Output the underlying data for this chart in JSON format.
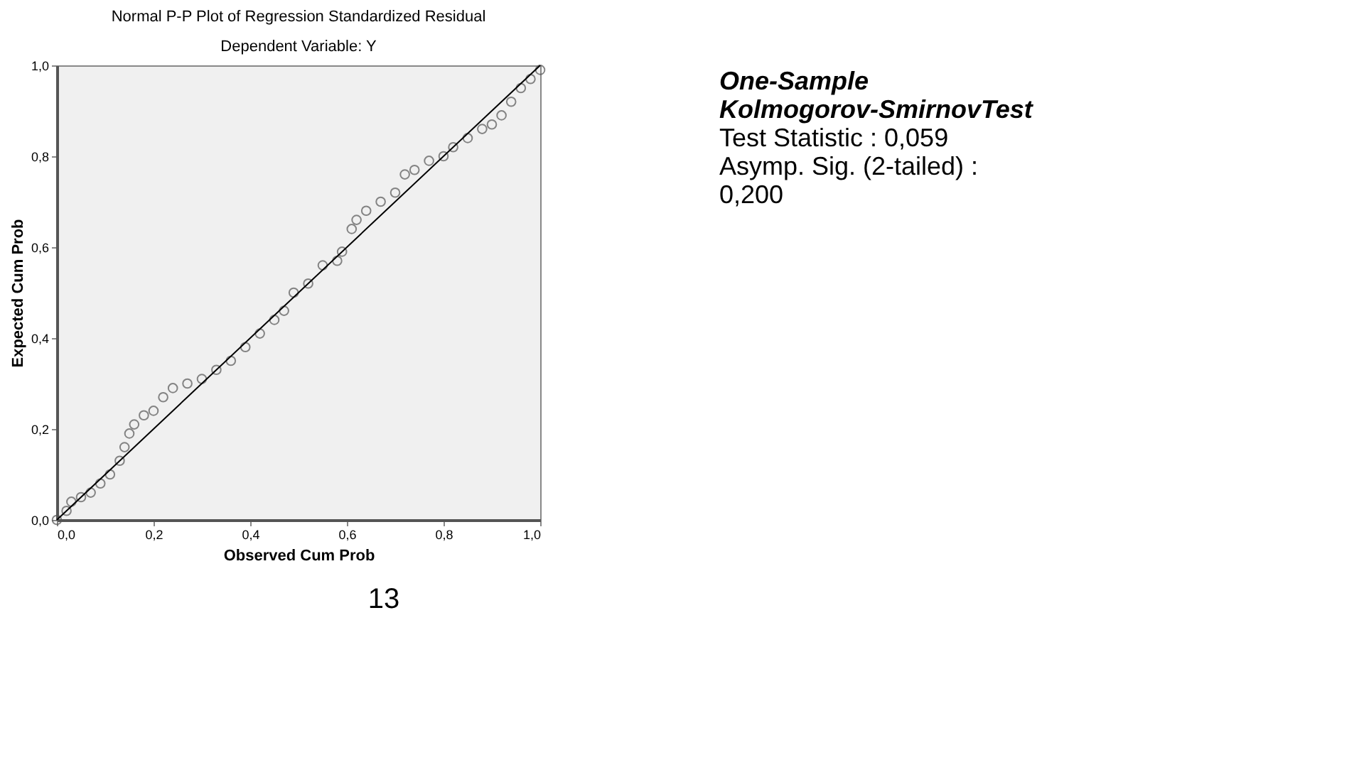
{
  "chart_data": [
    {
      "type": "scatter",
      "title": "Normal P-P Plot of Regression Standardized Residual",
      "subtitle": "Dependent Variable: Y",
      "xlabel": "Observed Cum Prob",
      "ylabel": "Expected Cum Prob",
      "xlim": [
        0,
        1
      ],
      "ylim": [
        0,
        1
      ],
      "xticks": [
        {
          "value": 0,
          "label": "0,0"
        },
        {
          "value": 0.2,
          "label": "0,2"
        },
        {
          "value": 0.4,
          "label": "0,4"
        },
        {
          "value": 0.6,
          "label": "0,6"
        },
        {
          "value": 0.8,
          "label": "0,8"
        },
        {
          "value": 1,
          "label": "1,0"
        }
      ],
      "yticks": [
        {
          "value": 0,
          "label": "0,0"
        },
        {
          "value": 0.2,
          "label": "0,2"
        },
        {
          "value": 0.4,
          "label": "0,4"
        },
        {
          "value": 0.6,
          "label": "0,6"
        },
        {
          "value": 0.8,
          "label": "0,8"
        },
        {
          "value": 1,
          "label": "1,0"
        }
      ],
      "grid": false,
      "series": [
        {
          "type": "scatter",
          "marker": "circle",
          "color": "#555555",
          "x": [
            0,
            0.02,
            0.03,
            0.05,
            0.07,
            0.09,
            0.11,
            0.13,
            0.14,
            0.15,
            0.16,
            0.18,
            0.2,
            0.22,
            0.24,
            0.27,
            0.3,
            0.33,
            0.36,
            0.39,
            0.42,
            0.45,
            0.47,
            0.49,
            0.52,
            0.55,
            0.58,
            0.59,
            0.61,
            0.62,
            0.64,
            0.67,
            0.7,
            0.72,
            0.74,
            0.77,
            0.8,
            0.82,
            0.85,
            0.88,
            0.9,
            0.92,
            0.94,
            0.96,
            0.98,
            1.0
          ],
          "values": [
            0,
            0.02,
            0.04,
            0.05,
            0.06,
            0.08,
            0.1,
            0.13,
            0.16,
            0.19,
            0.21,
            0.23,
            0.24,
            0.27,
            0.29,
            0.3,
            0.31,
            0.33,
            0.35,
            0.38,
            0.41,
            0.44,
            0.46,
            0.5,
            0.52,
            0.56,
            0.57,
            0.59,
            0.64,
            0.66,
            0.68,
            0.7,
            0.72,
            0.76,
            0.77,
            0.79,
            0.8,
            0.82,
            0.84,
            0.86,
            0.87,
            0.89,
            0.92,
            0.95,
            0.97,
            0.99
          ]
        },
        {
          "type": "line",
          "marker": "none",
          "color": "#000000",
          "x": [
            0,
            1
          ],
          "values": [
            0,
            1
          ]
        }
      ],
      "annotations": [
        "13"
      ]
    },
    {
      "type": "other",
      "title": "One-Sample Kolmogorov-SmirnovTest",
      "annotations": [
        "Test Statistic : 0,059",
        "Asymp. Sig. (2-tailed) : 0,200"
      ]
    }
  ]
}
